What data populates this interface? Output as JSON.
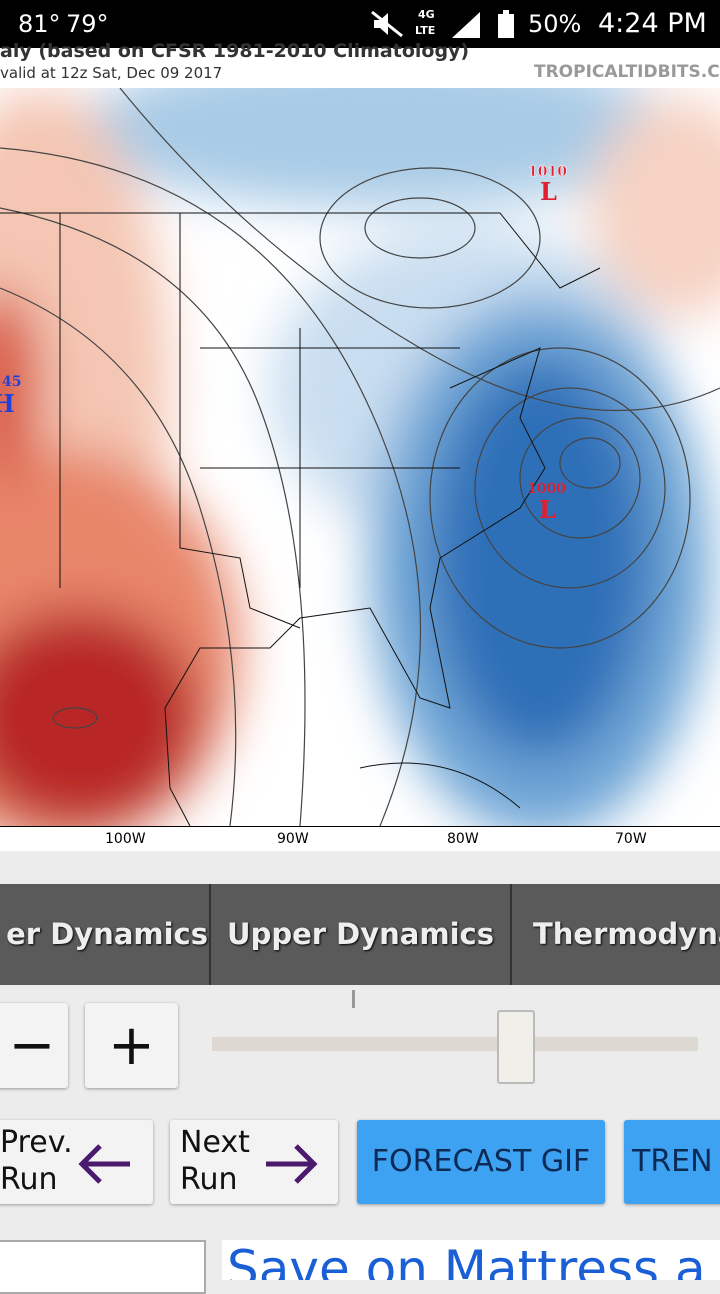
{
  "status_bar": {
    "temp_1": "81°",
    "temp_2": "79°",
    "network": "4G",
    "network_sub": "LTE",
    "battery": "50%",
    "time": "4:24 PM"
  },
  "map": {
    "title": "aly (based on CFSR 1981-2010 Climatology)",
    "valid": "valid at 12z Sat, Dec 09 2017",
    "site": "TROPICALTIDBITS.CO",
    "pressure_labels": [
      {
        "value": "1010",
        "symbol": "L"
      },
      {
        "value": "1000",
        "symbol": "L"
      },
      {
        "value": "45",
        "symbol": "H"
      }
    ],
    "longitudes": [
      "100W",
      "90W",
      "80W",
      "70W"
    ]
  },
  "tabs": [
    "er Dynamics",
    "Upper Dynamics",
    "Thermodyna"
  ],
  "zoom": {
    "out": "−",
    "in": "+"
  },
  "buttons": [
    {
      "lines": [
        "Prev.",
        "Run"
      ]
    },
    {
      "lines": [
        "Next",
        "Run"
      ]
    },
    {
      "label": "FORECAST GIF"
    },
    {
      "label": "TREN"
    }
  ],
  "ad": {
    "text": "Save on Mattress a"
  }
}
